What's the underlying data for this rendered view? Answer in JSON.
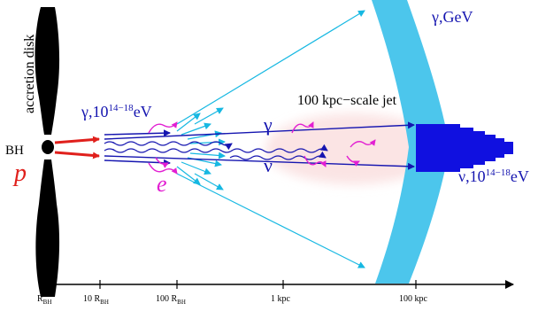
{
  "labels": {
    "disk": "accretion disk",
    "bh": "BH",
    "proton": "p",
    "gamma_in_symbol": "γ,10",
    "gamma_in_exp": "14−18",
    "gamma_in_unit": "eV",
    "electron": "e",
    "gamma": "γ",
    "nu": "ν",
    "jet": "100 kpc−scale jet",
    "gamma_gev": "γ,GeV",
    "nu_out_symbol": "ν,10",
    "nu_out_exp": "14−18",
    "nu_out_unit": "eV"
  },
  "axis": {
    "ticks": [
      {
        "main": "R",
        "sub": "BH"
      },
      {
        "main": "10 R",
        "sub": "BH"
      },
      {
        "main": "100 R",
        "sub": "BH"
      },
      {
        "main": "1 kpc",
        "sub": ""
      },
      {
        "main": "100 kpc",
        "sub": ""
      }
    ]
  },
  "colors": {
    "proton": "#e0201c",
    "photon": "#1515b0",
    "electron": "#e21fd2",
    "cascade": "#16b8e2",
    "shell": "#4cc6ec",
    "jet_glow": "#fbe4e4",
    "core": "#1010e0"
  }
}
